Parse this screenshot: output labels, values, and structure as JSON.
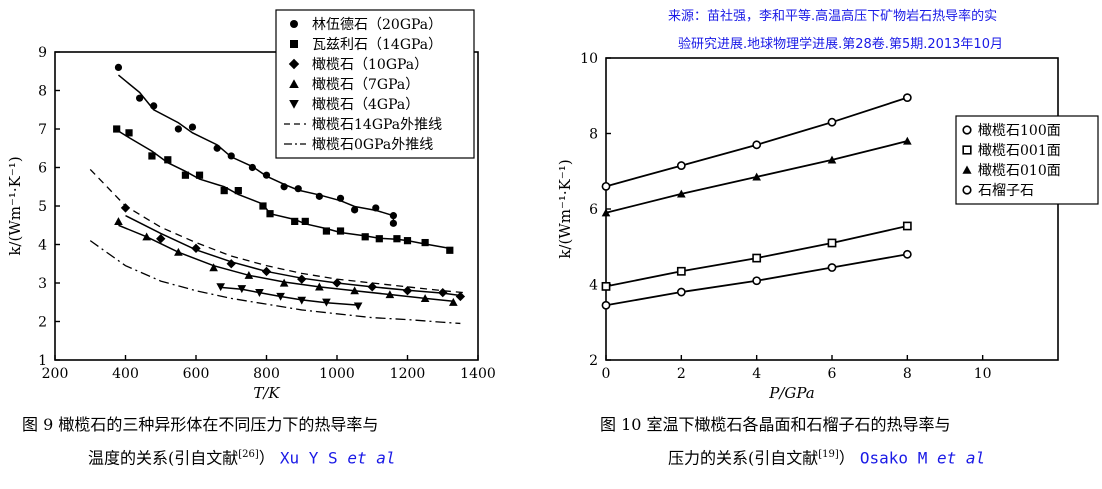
{
  "source_note": {
    "line1": "来源：苗社强，李和平等.高温高压下矿物岩石热导率的实",
    "line2": "验研究进展.地球物理学进展.第28卷.第5期.2013年10月"
  },
  "left": {
    "caption_line1": "图 9   橄榄石的三种异形体在不同压力下的热导率与",
    "caption_line2_pre": "温度的关系(引自文献",
    "caption_line2_ref": "[26]",
    "caption_line2_post": "）",
    "caption_author": "Xu Y S ",
    "caption_etal": "et al"
  },
  "right": {
    "caption_line1": "图 10   室温下橄榄石各晶面和石榴子石的热导率与",
    "caption_line2_pre": "压力的关系(引自文献",
    "caption_line2_ref": "[19]",
    "caption_line2_post": "）",
    "caption_author": "Osako M ",
    "caption_etal": "et al"
  },
  "chart_data": [
    {
      "type": "scatter",
      "xlabel": "T/K",
      "ylabel": "k/(Wm⁻¹·K⁻¹)",
      "xlim": [
        200,
        1400
      ],
      "ylim": [
        1,
        9
      ],
      "xticks": [
        200,
        400,
        600,
        800,
        1000,
        1200,
        1400
      ],
      "yticks": [
        1,
        2,
        3,
        4,
        5,
        6,
        7,
        8,
        9
      ],
      "legend_position": "top-right",
      "series": [
        {
          "name": "林伍德石（20GPa）",
          "marker": "circle",
          "x": [
            380,
            440,
            480,
            550,
            590,
            660,
            700,
            760,
            800,
            850,
            890,
            950,
            1010,
            1050,
            1110,
            1160,
            1160
          ],
          "y": [
            8.6,
            7.8,
            7.6,
            7.0,
            7.05,
            6.5,
            6.3,
            6.0,
            5.8,
            5.5,
            5.45,
            5.25,
            5.2,
            4.9,
            4.95,
            4.75,
            4.55
          ]
        },
        {
          "name": "瓦兹利石（14GPa）",
          "marker": "square",
          "x": [
            375,
            410,
            475,
            520,
            570,
            610,
            680,
            720,
            790,
            810,
            880,
            910,
            970,
            1010,
            1080,
            1120,
            1170,
            1200,
            1250,
            1320
          ],
          "y": [
            7.0,
            6.9,
            6.3,
            6.2,
            5.8,
            5.8,
            5.4,
            5.4,
            5.0,
            4.8,
            4.6,
            4.6,
            4.35,
            4.35,
            4.2,
            4.15,
            4.15,
            4.1,
            4.05,
            3.85
          ]
        },
        {
          "name": "橄榄石（10GPa）",
          "marker": "diamond",
          "x": [
            400,
            500,
            600,
            700,
            800,
            900,
            1000,
            1100,
            1200,
            1300,
            1350
          ],
          "y": [
            4.95,
            4.15,
            3.9,
            3.5,
            3.3,
            3.1,
            3.0,
            2.9,
            2.8,
            2.75,
            2.65
          ]
        },
        {
          "name": "橄榄石（7GPa）",
          "marker": "triangle-up",
          "x": [
            380,
            460,
            550,
            650,
            750,
            850,
            950,
            1050,
            1150,
            1250,
            1330
          ],
          "y": [
            4.6,
            4.2,
            3.8,
            3.4,
            3.2,
            3.0,
            2.9,
            2.8,
            2.7,
            2.6,
            2.5
          ]
        },
        {
          "name": "橄榄石（4GPa）",
          "marker": "triangle-down",
          "x": [
            670,
            730,
            780,
            840,
            900,
            970,
            1060
          ],
          "y": [
            2.9,
            2.85,
            2.75,
            2.65,
            2.55,
            2.5,
            2.4
          ]
        },
        {
          "name": "橄榄石14GPa外推线",
          "style": "dashed",
          "x": [
            300,
            400,
            500,
            600,
            700,
            800,
            900,
            1000,
            1100,
            1200,
            1300,
            1360
          ],
          "y": [
            5.95,
            5.0,
            4.45,
            4.05,
            3.7,
            3.45,
            3.25,
            3.1,
            3.0,
            2.9,
            2.8,
            2.75
          ]
        },
        {
          "name": "橄榄石0GPa外推线",
          "style": "dashdot",
          "x": [
            300,
            400,
            500,
            600,
            700,
            800,
            900,
            1000,
            1100,
            1200,
            1300,
            1350
          ],
          "y": [
            4.1,
            3.45,
            3.05,
            2.8,
            2.6,
            2.45,
            2.3,
            2.2,
            2.1,
            2.05,
            1.98,
            1.95
          ]
        }
      ]
    },
    {
      "type": "line",
      "xlabel": "P/GPa",
      "ylabel": "k/(Wm⁻¹·K⁻¹)",
      "xlim": [
        0,
        12
      ],
      "ylim": [
        2,
        10
      ],
      "xticks": [
        0,
        2,
        4,
        6,
        8,
        10
      ],
      "yticks": [
        2,
        4,
        6,
        8,
        10
      ],
      "legend_position": "right",
      "series": [
        {
          "name": "橄榄石100面",
          "marker": "circle-open",
          "x": [
            0,
            2,
            4,
            6,
            8
          ],
          "y": [
            6.6,
            7.15,
            7.7,
            8.3,
            8.95
          ]
        },
        {
          "name": "橄榄石001面",
          "marker": "square-open",
          "x": [
            0,
            2,
            4,
            6,
            8
          ],
          "y": [
            3.95,
            4.35,
            4.7,
            5.1,
            5.55
          ]
        },
        {
          "name": "橄榄石010面",
          "marker": "triangle-up",
          "x": [
            0,
            2,
            4,
            6,
            8
          ],
          "y": [
            5.9,
            6.4,
            6.85,
            7.3,
            7.8
          ]
        },
        {
          "name": "石榴子石",
          "marker": "circle-open",
          "x": [
            0,
            2,
            4,
            6,
            8
          ],
          "y": [
            3.45,
            3.8,
            4.1,
            4.45,
            4.8
          ]
        }
      ]
    }
  ]
}
